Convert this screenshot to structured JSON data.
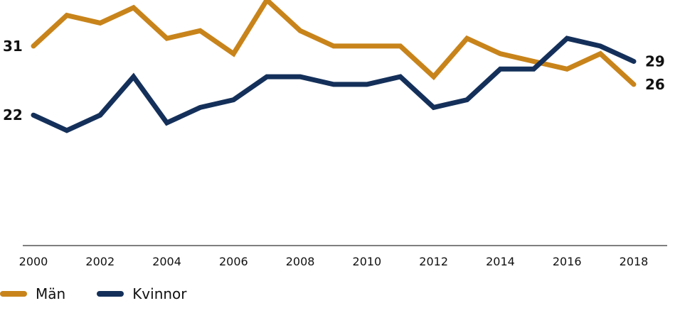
{
  "chart_data": {
    "type": "line",
    "title": "",
    "xlabel": "",
    "ylabel": "",
    "x": [
      2000,
      2001,
      2002,
      2003,
      2004,
      2005,
      2006,
      2007,
      2008,
      2009,
      2010,
      2011,
      2012,
      2013,
      2014,
      2015,
      2016,
      2017,
      2018
    ],
    "x_tick_labels": [
      "2000",
      "2002",
      "2004",
      "2006",
      "2008",
      "2010",
      "2012",
      "2014",
      "2016",
      "2018"
    ],
    "ylim": [
      5,
      37
    ],
    "grid": false,
    "legend_position": "bottom-left",
    "series": [
      {
        "name": "Män",
        "color": "#c8841a",
        "values": [
          31,
          35,
          34,
          36,
          32,
          33,
          30,
          37,
          33,
          31,
          31,
          31,
          27,
          32,
          30,
          29,
          28,
          30,
          26
        ],
        "start_label": "31",
        "end_label": "26"
      },
      {
        "name": "Kvinnor",
        "color": "#14305a",
        "values": [
          22,
          20,
          22,
          27,
          21,
          23,
          24,
          27,
          27,
          26,
          26,
          27,
          23,
          24,
          28,
          28,
          32,
          31,
          29
        ],
        "start_label": "22",
        "end_label": "29"
      }
    ],
    "axis_color": "#555555"
  }
}
